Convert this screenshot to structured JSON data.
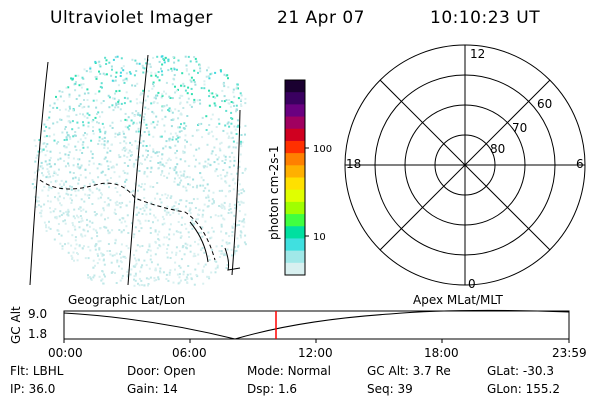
{
  "header": {
    "title": "Ultraviolet Imager",
    "date": "21 Apr 07",
    "time": "10:10:23 UT"
  },
  "colorbar": {
    "label": "photon cm-2s-1",
    "ticks": [
      "100",
      "10"
    ],
    "colors": [
      "#1a0030",
      "#3a0060",
      "#6a0080",
      "#a00060",
      "#d00020",
      "#ff3000",
      "#ff8000",
      "#ffb000",
      "#ffe000",
      "#e0ff00",
      "#a0ff00",
      "#40ff40",
      "#00e0a0",
      "#40e0e0",
      "#a0e8e8",
      "#d8f0f0"
    ]
  },
  "polar": {
    "labels": {
      "top": "12",
      "bottom": "0",
      "left": "18",
      "right": "6"
    },
    "lat_labels": [
      "60",
      "70",
      "80"
    ]
  },
  "panels": {
    "left_caption": "Geographic Lat/Lon",
    "right_caption": "Apex MLat/MLT"
  },
  "altitude_plot": {
    "ylabel": "GC Alt",
    "yticks": [
      "9.0",
      "1.8"
    ],
    "xticks": [
      "00:00",
      "06:00",
      "12:00",
      "18:00",
      "23:59"
    ],
    "marker_color": "#ff0000"
  },
  "info": {
    "row1": [
      {
        "label": "Flt:",
        "value": "LBHL"
      },
      {
        "label": "Door:",
        "value": "Open"
      },
      {
        "label": "Mode:",
        "value": "Normal"
      },
      {
        "label": "GC Alt:",
        "value": "3.7 Re"
      },
      {
        "label": "GLat:",
        "value": "-30.3"
      }
    ],
    "row2": [
      {
        "label": "IP:",
        "value": "36.0"
      },
      {
        "label": "Gain:",
        "value": "14"
      },
      {
        "label": "Dsp:",
        "value": "1.6"
      },
      {
        "label": "Seq:",
        "value": "39"
      },
      {
        "label": "GLon:",
        "value": "155.2"
      }
    ]
  }
}
